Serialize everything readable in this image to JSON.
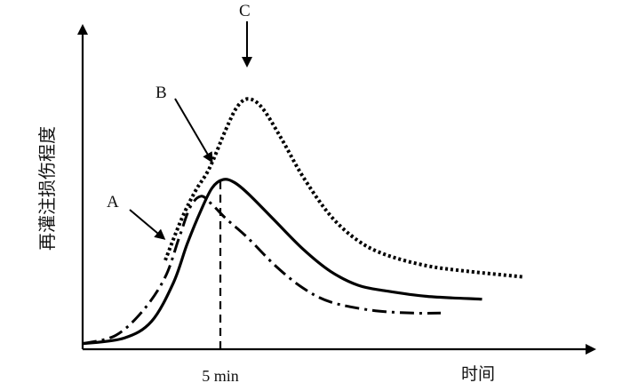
{
  "chart_data": {
    "type": "line",
    "title": "",
    "xlabel": "时间",
    "ylabel": "再灌注损伤程度",
    "x_tick_label": "5 min",
    "grid": false,
    "legend": "none",
    "series": [
      {
        "name": "A",
        "style": "dash-dot",
        "points": [
          [
            0.0,
            0.02
          ],
          [
            1.2,
            0.05
          ],
          [
            2.2,
            0.14
          ],
          [
            3.0,
            0.26
          ],
          [
            3.5,
            0.4
          ],
          [
            3.9,
            0.51
          ],
          [
            4.3,
            0.55
          ],
          [
            4.7,
            0.52
          ],
          [
            5.2,
            0.47
          ],
          [
            6.0,
            0.4
          ],
          [
            7.0,
            0.3
          ],
          [
            8.0,
            0.22
          ],
          [
            9.0,
            0.17
          ],
          [
            10.5,
            0.14
          ],
          [
            12.0,
            0.13
          ],
          [
            13.0,
            0.13
          ]
        ]
      },
      {
        "name": "B",
        "style": "solid",
        "points": [
          [
            0.0,
            0.02
          ],
          [
            1.5,
            0.04
          ],
          [
            2.5,
            0.1
          ],
          [
            3.3,
            0.24
          ],
          [
            3.8,
            0.38
          ],
          [
            4.3,
            0.5
          ],
          [
            4.7,
            0.58
          ],
          [
            5.1,
            0.61
          ],
          [
            5.5,
            0.6
          ],
          [
            6.0,
            0.56
          ],
          [
            7.0,
            0.46
          ],
          [
            8.0,
            0.36
          ],
          [
            9.0,
            0.28
          ],
          [
            10.0,
            0.23
          ],
          [
            11.0,
            0.21
          ],
          [
            12.5,
            0.19
          ],
          [
            14.5,
            0.18
          ]
        ]
      },
      {
        "name": "C",
        "style": "dotted",
        "points": [
          [
            3.0,
            0.32
          ],
          [
            3.6,
            0.47
          ],
          [
            4.1,
            0.57
          ],
          [
            4.6,
            0.65
          ],
          [
            5.2,
            0.79
          ],
          [
            5.6,
            0.87
          ],
          [
            6.0,
            0.9
          ],
          [
            6.5,
            0.87
          ],
          [
            7.2,
            0.76
          ],
          [
            8.0,
            0.62
          ],
          [
            9.0,
            0.48
          ],
          [
            10.0,
            0.39
          ],
          [
            11.0,
            0.34
          ],
          [
            12.5,
            0.3
          ],
          [
            14.0,
            0.28
          ],
          [
            16.0,
            0.26
          ]
        ]
      }
    ],
    "markers": {
      "vertical_dashed_at_x": 5.0
    },
    "annotations": [
      {
        "label": "A"
      },
      {
        "label": "B"
      },
      {
        "label": "C"
      }
    ]
  }
}
